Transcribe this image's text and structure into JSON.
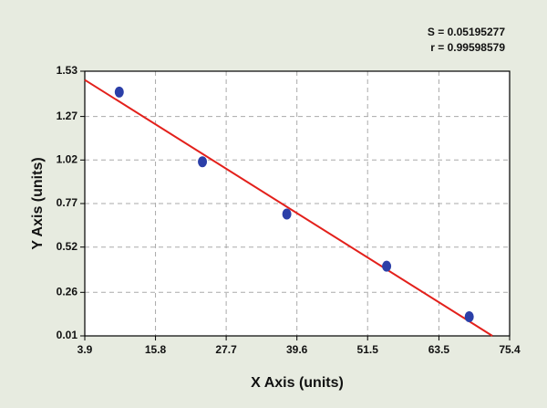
{
  "chart_data": {
    "type": "scatter",
    "xlabel": "X Axis (units)",
    "ylabel": "Y Axis (units)",
    "annotations": [
      "S = 0.05195277",
      "r = 0.99598579"
    ],
    "series": [
      {
        "color": "#2b3fa8",
        "x": [
          9.7,
          23.7,
          37.9,
          54.7,
          68.6
        ],
        "values": [
          1.41,
          1.01,
          0.71,
          0.41,
          0.12
        ]
      }
    ],
    "fit_line": {
      "color": "#e3201b",
      "x": [
        3.9,
        72.5
      ],
      "values": [
        1.48,
        0.01
      ]
    },
    "xlim": [
      3.9,
      75.4
    ],
    "xticks": [
      3.9,
      15.8,
      27.7,
      39.6,
      51.5,
      63.5,
      75.4
    ],
    "ylim": [
      0.01,
      1.53
    ],
    "yticks": [
      0.01,
      0.26,
      0.52,
      0.77,
      1.02,
      1.27,
      1.53
    ],
    "grid": true
  }
}
